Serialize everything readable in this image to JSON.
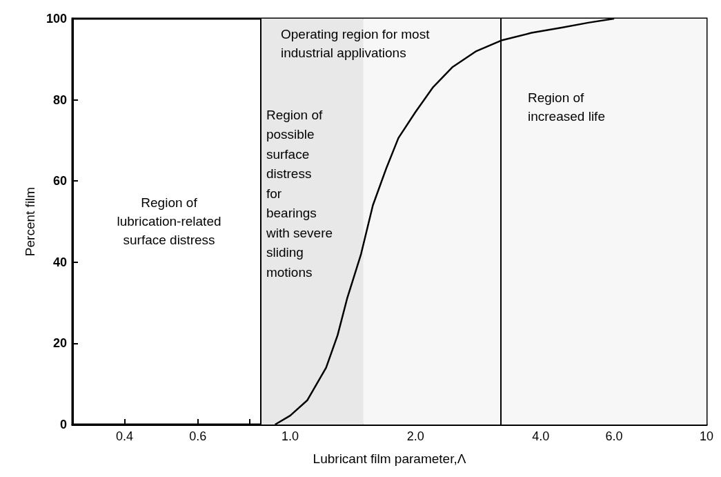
{
  "chart_data": {
    "type": "line",
    "xlabel": "Lubricant film parameter,Λ",
    "ylabel": "Percent film",
    "log": "x",
    "grid": false,
    "marker": "none",
    "line_style": "solid",
    "xlim": [
      0.3,
      10
    ],
    "xticks": [
      {
        "value": 0.4,
        "label": "0.4"
      },
      {
        "value": 0.6,
        "label": "0.6"
      },
      {
        "value": 0.8,
        "label": null
      },
      {
        "value": 1,
        "label": "1.0"
      },
      {
        "value": 2,
        "label": "2.0"
      },
      {
        "value": 4,
        "label": "4.0"
      },
      {
        "value": 6,
        "label": "6.0"
      },
      {
        "value": 8,
        "label": null
      },
      10
    ],
    "ylim": [
      0,
      100
    ],
    "yticks": [
      0,
      20,
      40,
      60,
      80,
      100
    ],
    "series": [
      {
        "color": "#000000",
        "x": [
          0.92,
          1.0,
          1.1,
          1.22,
          1.3,
          1.37,
          1.48,
          1.58,
          1.7,
          1.82,
          2.0,
          2.2,
          2.45,
          2.8,
          3.23,
          3.8,
          4.49,
          5.2,
          6.0
        ],
        "values": [
          0,
          2.2,
          6,
          14,
          22,
          31,
          42,
          54,
          63,
          70.6,
          77,
          83,
          88,
          92,
          94.7,
          96.5,
          97.8,
          99,
          100
        ]
      }
    ],
    "ref_lines": [
      {
        "axis": "x",
        "value": 0.85,
        "color": "#000000"
      },
      {
        "axis": "x",
        "value": 3.2,
        "color": "#000000"
      }
    ],
    "bands": [
      {
        "axis": "x",
        "from": 0.85,
        "to": 1.5,
        "color": "#e8e8e8",
        "label": "Region of\npossible\nsurface\ndistress\nfor\nbearings\nwith severe\nsliding\nmotions"
      },
      {
        "axis": "x",
        "from": 1.5,
        "to": 10,
        "color": "#f7f7f7"
      }
    ],
    "annotations": [
      "Region of\nlubrication-related\nsurface distress",
      "Operating region for most\nindustrial applivations",
      "Region of\nincreased life"
    ]
  }
}
